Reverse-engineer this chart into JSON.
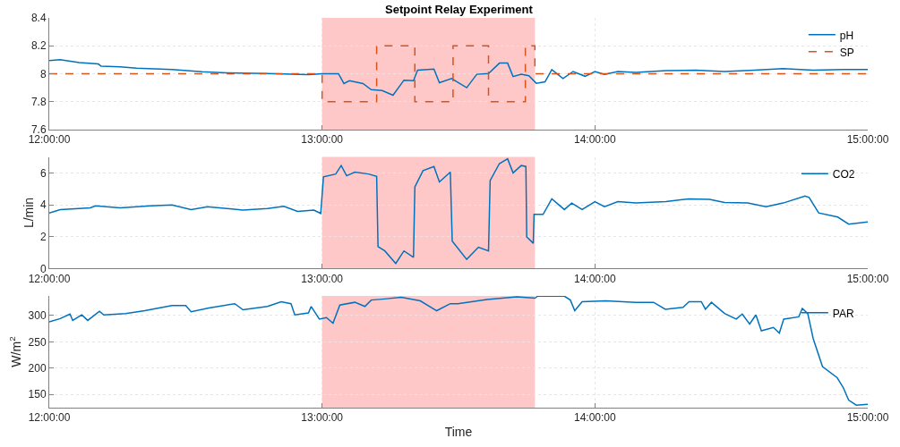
{
  "chart_data": [
    {
      "type": "line",
      "title": "Setpoint Relay Experiment",
      "xlim": [
        12,
        15
      ],
      "xticks": [
        {
          "value": 12,
          "label": "12:00:00"
        },
        {
          "value": 13,
          "label": "13:00:00"
        },
        {
          "value": 14,
          "label": "14:00:00"
        },
        {
          "value": 15,
          "label": "15:00:00"
        }
      ],
      "ylim": [
        7.6,
        8.4
      ],
      "yticks": [
        7.6,
        7.8,
        8,
        8.2,
        8.4
      ],
      "grid": true,
      "legend": "top right",
      "bands": [
        {
          "axis": "x",
          "from": 13,
          "to": 13.78,
          "color": "#ffc8c8"
        }
      ],
      "series": [
        {
          "name": "pH",
          "color": "#0072bd",
          "line_style": "solid",
          "x": [
            12,
            12.04,
            12.11,
            12.18,
            12.19,
            12.26,
            12.32,
            12.45,
            12.56,
            12.65,
            12.8,
            12.95,
            13,
            13.06,
            13.08,
            13.1,
            13.15,
            13.18,
            13.22,
            13.26,
            13.3,
            13.335,
            13.35,
            13.41,
            13.43,
            13.475,
            13.53,
            13.567,
            13.61,
            13.65,
            13.68,
            13.7,
            13.73,
            13.758,
            13.785,
            13.817,
            13.842,
            13.883,
            13.92,
            13.964,
            14,
            14.035,
            14.084,
            14.15,
            14.26,
            14.37,
            14.475,
            14.584,
            14.69,
            14.8,
            14.91,
            15
          ],
          "values": [
            8.094,
            8.1,
            8.08,
            8.07,
            8.054,
            8.05,
            8.04,
            8.03,
            8.014,
            8.006,
            8.002,
            7.994,
            8,
            8,
            7.93,
            7.95,
            7.93,
            7.886,
            7.88,
            7.846,
            7.954,
            7.95,
            8.026,
            8.034,
            7.936,
            7.966,
            7.9,
            7.996,
            8.002,
            8.076,
            8.076,
            7.98,
            7.996,
            7.986,
            7.932,
            7.942,
            8.03,
            7.966,
            8.016,
            7.982,
            8.016,
            7.996,
            8.016,
            8.01,
            8.022,
            8.026,
            8.016,
            8.026,
            8.036,
            8.026,
            8.03,
            8.03
          ]
        },
        {
          "name": "SP",
          "color": "#d95319",
          "line_style": "dashed",
          "x": [
            12,
            13,
            13,
            13.2,
            13.2,
            13.34,
            13.34,
            13.48,
            13.48,
            13.61,
            13.61,
            13.745,
            13.745,
            13.78,
            13.78,
            15
          ],
          "values": [
            8,
            8,
            7.8,
            7.8,
            8.2,
            8.2,
            7.8,
            7.8,
            8.2,
            8.2,
            7.8,
            7.8,
            8.2,
            8.2,
            8,
            8
          ]
        }
      ]
    },
    {
      "type": "line",
      "ylabel": "L/min",
      "xlim": [
        12,
        15
      ],
      "xticks": [
        {
          "value": 12,
          "label": "12:00:00"
        },
        {
          "value": 13,
          "label": "13:00:00"
        },
        {
          "value": 14,
          "label": "14:00:00"
        },
        {
          "value": 15,
          "label": "15:00:00"
        }
      ],
      "ylim": [
        0,
        7
      ],
      "yticks": [
        0,
        2,
        4,
        6
      ],
      "grid": true,
      "legend": "top right",
      "bands": [
        {
          "axis": "x",
          "from": 13,
          "to": 13.78,
          "color": "#ffc8c8"
        }
      ],
      "series": [
        {
          "name": "CO2",
          "color": "#0072bd",
          "line_style": "solid",
          "x": [
            12,
            12.04,
            12.15,
            12.17,
            12.26,
            12.37,
            12.45,
            12.52,
            12.58,
            12.71,
            12.8,
            12.86,
            12.91,
            12.97,
            12.995,
            13.005,
            13.05,
            13.07,
            13.09,
            13.12,
            13.17,
            13.2,
            13.205,
            13.23,
            13.27,
            13.3,
            13.335,
            13.34,
            13.37,
            13.41,
            13.43,
            13.47,
            13.477,
            13.53,
            13.573,
            13.61,
            13.616,
            13.65,
            13.68,
            13.7,
            13.73,
            13.747,
            13.75,
            13.774,
            13.777,
            13.81,
            13.842,
            13.888,
            13.915,
            13.953,
            14,
            14.035,
            14.084,
            14.15,
            14.26,
            14.345,
            14.42,
            14.475,
            14.56,
            14.627,
            14.69,
            14.77,
            14.785,
            14.82,
            14.89,
            14.93,
            15
          ],
          "values": [
            3.49,
            3.7,
            3.81,
            3.93,
            3.81,
            3.93,
            3.99,
            3.7,
            3.88,
            3.67,
            3.76,
            3.9,
            3.58,
            3.67,
            3.46,
            5.75,
            5.93,
            6.46,
            5.82,
            6.05,
            5.93,
            5.78,
            1.38,
            1.11,
            0.32,
            1.11,
            0.71,
            5.11,
            6.14,
            6.4,
            5.43,
            6.05,
            1.73,
            0.58,
            1.34,
            1.11,
            5.52,
            6.58,
            6.88,
            6,
            6.46,
            6.4,
            1.99,
            1.59,
            3.4,
            3.4,
            4.37,
            3.7,
            4.11,
            3.7,
            4.2,
            3.88,
            4.2,
            4.11,
            4.2,
            4.37,
            4.34,
            4.14,
            4.11,
            3.88,
            4.11,
            4.55,
            4.46,
            3.49,
            3.23,
            2.79,
            2.93
          ]
        }
      ]
    },
    {
      "type": "line",
      "xlabel": "Time",
      "ylabel": "W/m$^{2}$",
      "xlim": [
        12,
        15
      ],
      "xticks": [
        {
          "value": 12,
          "label": "12:00:00"
        },
        {
          "value": 13,
          "label": "13:00:00"
        },
        {
          "value": 14,
          "label": "14:00:00"
        },
        {
          "value": 15,
          "label": "15:00:00"
        }
      ],
      "ylim": [
        125,
        337
      ],
      "yticks": [
        150,
        200,
        250,
        300
      ],
      "grid": true,
      "legend": "top right",
      "bands": [
        {
          "axis": "x",
          "from": 13,
          "to": 13.78,
          "color": "#ffc8c8"
        }
      ],
      "series": [
        {
          "name": "PAR",
          "color": "#0072bd",
          "line_style": "solid",
          "x": [
            12,
            12.04,
            12.076,
            12.086,
            12.119,
            12.141,
            12.184,
            12.2,
            12.28,
            12.35,
            12.45,
            12.5,
            12.52,
            12.585,
            12.68,
            12.71,
            12.8,
            12.85,
            12.886,
            12.9,
            12.95,
            12.96,
            12.99,
            13.016,
            13.04,
            13.065,
            13.12,
            13.157,
            13.18,
            13.23,
            13.29,
            13.36,
            13.42,
            13.47,
            13.497,
            13.605,
            13.714,
            13.78,
            13.79,
            13.888,
            13.91,
            13.926,
            13.953,
            14.04,
            14.15,
            14.215,
            14.258,
            14.323,
            14.345,
            14.39,
            14.405,
            14.427,
            14.475,
            14.518,
            14.54,
            14.567,
            14.59,
            14.61,
            14.654,
            14.676,
            14.692,
            14.747,
            14.76,
            14.78,
            14.8,
            14.834,
            14.888,
            14.91,
            14.93,
            14.958,
            15
          ],
          "values": [
            287.8,
            294,
            302.7,
            290.5,
            301,
            290.5,
            308,
            301,
            303.7,
            309,
            318.6,
            318.6,
            307,
            314.3,
            322.3,
            310.6,
            317,
            326,
            322.3,
            301,
            304.8,
            317,
            293.1,
            295.8,
            285.2,
            319.6,
            324.9,
            317,
            329.2,
            331.3,
            334.5,
            327.6,
            309,
            322.3,
            322.3,
            330.2,
            335.5,
            332.8,
            336.6,
            336.6,
            329.2,
            309,
            326,
            327.6,
            324.9,
            324.9,
            311.7,
            315.4,
            326,
            326,
            311.7,
            324.9,
            303.7,
            293.1,
            302.7,
            283.6,
            301,
            270.8,
            277.2,
            266.6,
            293.1,
            297.3,
            313.2,
            303.7,
            256,
            203,
            181.8,
            163.2,
            139.3,
            129.8,
            131.4
          ]
        }
      ]
    }
  ]
}
